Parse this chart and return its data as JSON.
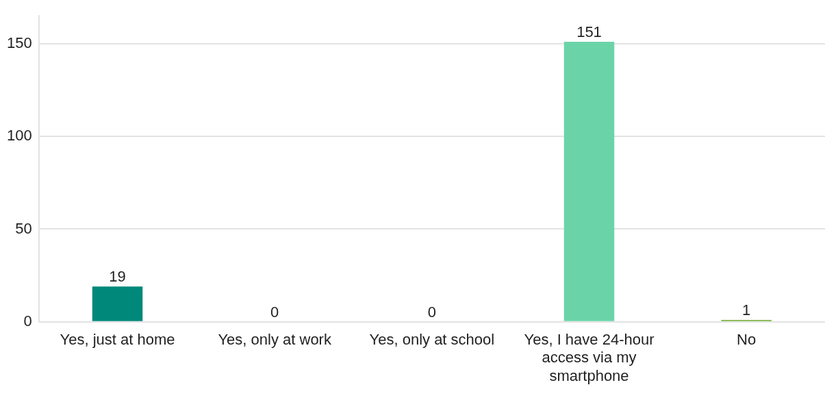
{
  "chart_data": {
    "type": "bar",
    "categories": [
      "Yes, just at home",
      "Yes, only at work",
      "Yes, only at school",
      "Yes, I have 24-hour access via my smartphone",
      "No"
    ],
    "values": [
      19,
      0,
      0,
      151,
      1
    ],
    "colors": [
      "#00897b",
      "#c0ca33",
      "#00b176",
      "#6ad4a8",
      "#7cb342"
    ],
    "ylim": [
      0,
      165
    ],
    "yticks": [
      0,
      50,
      100,
      150
    ],
    "grid": "y",
    "data_labels": true,
    "legend": false
  }
}
